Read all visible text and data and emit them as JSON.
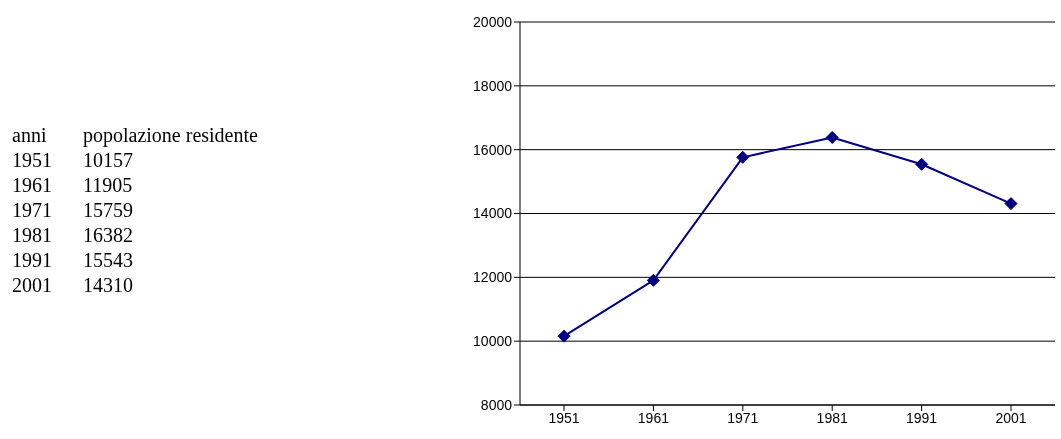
{
  "chart_data": {
    "type": "line",
    "annotations": [
      "anni",
      "popolazione residente",
      "1951",
      "10157",
      "1961",
      "11905",
      "1971",
      "15759",
      "1981",
      "16382",
      "1991",
      "15543",
      "2001",
      "14310"
    ],
    "categories": [
      "1951",
      "1961",
      "1971",
      "1981",
      "1991",
      "2001"
    ],
    "series": [
      {
        "color": "#000080",
        "values": [
          10157,
          11905,
          15759,
          16382,
          15543,
          14310
        ]
      }
    ],
    "ylim": [
      8000,
      20000
    ],
    "yticks": [
      8000,
      10000,
      12000,
      14000,
      16000,
      18000,
      20000
    ],
    "grid": "y",
    "marker": "diamond"
  }
}
